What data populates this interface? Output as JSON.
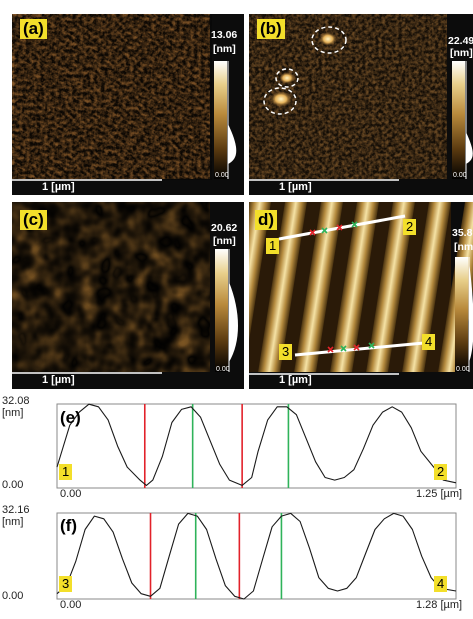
{
  "panels": {
    "a": {
      "label": "(a)",
      "colorbar_max": "13.06",
      "colorbar_unit": "[nm]",
      "colorbar_min": "0.00",
      "scale_bar": "1 [µm]"
    },
    "b": {
      "label": "(b)",
      "colorbar_max": "22.49",
      "colorbar_unit": "[nm]",
      "colorbar_min": "0.00",
      "scale_bar": "1 [µm]"
    },
    "c": {
      "label": "(c)",
      "colorbar_max": "20.62",
      "colorbar_unit": "[nm]",
      "colorbar_min": "0.00",
      "scale_bar": "1 [µm]"
    },
    "d": {
      "label": "d)",
      "colorbar_max": "35.8",
      "colorbar_unit": "[nm]",
      "colorbar_min": "0.00",
      "scale_bar": "1 [µm]",
      "markers": [
        "1",
        "2",
        "3",
        "4"
      ]
    }
  },
  "chart_data": [
    {
      "type": "line",
      "label": "(e)",
      "ylabel": "[nm]",
      "ylim": [
        0.0,
        32.08
      ],
      "ylim_labels": [
        "0.00",
        "32.08"
      ],
      "xlim": [
        0.0,
        1.25
      ],
      "xlim_labels": [
        "0.00",
        "1.25 [µm]"
      ],
      "endpoint_markers": [
        "1",
        "2"
      ],
      "x": [
        0.0,
        0.02,
        0.04,
        0.07,
        0.1,
        0.13,
        0.16,
        0.19,
        0.22,
        0.26,
        0.28,
        0.3,
        0.33,
        0.36,
        0.39,
        0.42,
        0.45,
        0.48,
        0.51,
        0.54,
        0.58,
        0.61,
        0.63,
        0.66,
        0.69,
        0.72,
        0.75,
        0.78,
        0.81,
        0.84,
        0.87,
        0.9,
        0.93,
        0.96,
        0.99,
        1.02,
        1.05,
        1.08,
        1.11,
        1.14,
        1.18,
        1.21,
        1.25
      ],
      "y": [
        8,
        16,
        24,
        29,
        32,
        31,
        26,
        16,
        8,
        3,
        1,
        3,
        12,
        25,
        30,
        31,
        27,
        18,
        9,
        3,
        1,
        4,
        14,
        26,
        31,
        31,
        28,
        19,
        10,
        4,
        3,
        4,
        7,
        15,
        24,
        29,
        31,
        29,
        23,
        14,
        8,
        3,
        2
      ],
      "markers_red_x": [
        0.275,
        0.58
      ],
      "markers_green_x": [
        0.425,
        0.725
      ]
    },
    {
      "type": "line",
      "label": "(f)",
      "ylabel": "[nm]",
      "ylim": [
        0.0,
        32.16
      ],
      "ylim_labels": [
        "0.00",
        "32.16"
      ],
      "xlim": [
        0.0,
        1.28
      ],
      "xlim_labels": [
        "0.00",
        "1.28 [µm]"
      ],
      "endpoint_markers": [
        "3",
        "4"
      ],
      "x": [
        0.0,
        0.03,
        0.06,
        0.09,
        0.12,
        0.15,
        0.18,
        0.21,
        0.24,
        0.27,
        0.3,
        0.33,
        0.36,
        0.39,
        0.42,
        0.45,
        0.48,
        0.51,
        0.54,
        0.57,
        0.6,
        0.63,
        0.66,
        0.69,
        0.72,
        0.75,
        0.78,
        0.81,
        0.84,
        0.87,
        0.9,
        0.93,
        0.96,
        0.99,
        1.02,
        1.05,
        1.08,
        1.11,
        1.14,
        1.17,
        1.2,
        1.23,
        1.28
      ],
      "y": [
        2,
        5,
        14,
        26,
        31,
        30,
        25,
        15,
        6,
        2,
        1,
        4,
        16,
        28,
        32,
        31,
        26,
        15,
        5,
        1,
        0,
        3,
        15,
        27,
        31,
        32,
        29,
        19,
        8,
        4,
        3,
        4,
        8,
        17,
        26,
        30,
        32,
        31,
        26,
        16,
        8,
        4,
        3
      ],
      "markers_red_x": [
        0.3,
        0.585
      ],
      "markers_green_x": [
        0.445,
        0.72
      ]
    }
  ]
}
